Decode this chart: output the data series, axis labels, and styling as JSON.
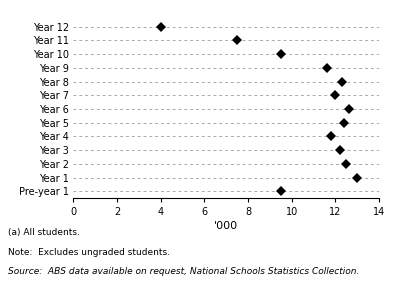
{
  "categories": [
    "Year 12",
    "Year 11",
    "Year 10",
    "Year 9",
    "Year 8",
    "Year 7",
    "Year 6",
    "Year 5",
    "Year 4",
    "Year 3",
    "Year 2",
    "Year 1",
    "Pre-year 1"
  ],
  "values": [
    4.0,
    7.5,
    9.5,
    11.6,
    12.3,
    12.0,
    12.6,
    12.4,
    11.8,
    12.2,
    12.5,
    13.0,
    9.5
  ],
  "xlabel": "'000",
  "xlim": [
    0,
    14
  ],
  "xticks": [
    0,
    2,
    4,
    6,
    8,
    10,
    12,
    14
  ],
  "marker_color": "#000000",
  "marker_size": 5,
  "dash_color": "#aaaaaa",
  "footnote_a": "(a) All students.",
  "footnote_note": "Note:  Excludes ungraded students.",
  "footnote_source": "Source:  ABS data available on request, National Schools Statistics Collection."
}
